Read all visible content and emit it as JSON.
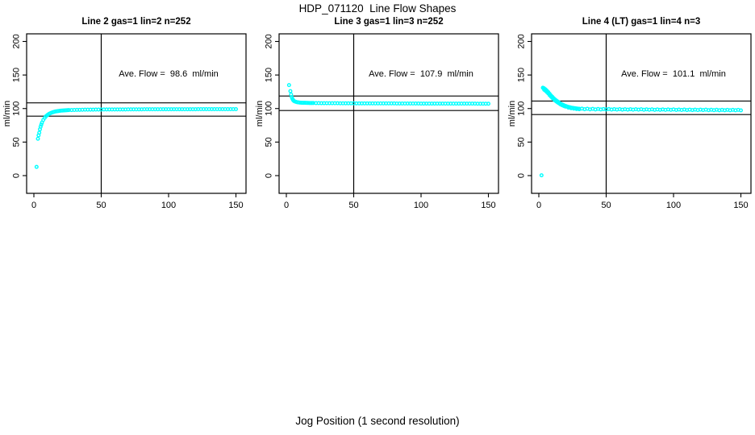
{
  "page": {
    "title": "HDP_071120  Line Flow Shapes",
    "xlabel": "Jog Position (1 second resolution)"
  },
  "colors": {
    "points": "#00FFFF",
    "axis": "#000000",
    "background": "#FFFFFF"
  },
  "chart_data": [
    {
      "type": "scatter",
      "title": "Line 2 gas=1 lin=2 n=252",
      "annotation": "Ave. Flow =  98.6  ml/min",
      "ave_flow_ml_min": 98.6,
      "ylabel": "ml/min",
      "x_ticks": [
        0,
        50,
        100,
        150
      ],
      "y_ticks": [
        0,
        50,
        100,
        150,
        200
      ],
      "xlim": [
        0,
        150
      ],
      "ylim": [
        0,
        200
      ],
      "vline_x": 50,
      "hlines": [
        108.5,
        88.7
      ],
      "points": [
        [
          2,
          13
        ],
        [
          3,
          55
        ],
        [
          3.5,
          60
        ],
        [
          4,
          64
        ],
        [
          4.5,
          69
        ],
        [
          5,
          73
        ],
        [
          5.5,
          76
        ],
        [
          6,
          79
        ],
        [
          7,
          83
        ],
        [
          8,
          86
        ],
        [
          9,
          88.5
        ],
        [
          10,
          90.3
        ],
        [
          11,
          91.7
        ],
        [
          12,
          92.8
        ],
        [
          13,
          93.7
        ],
        [
          14,
          94.5
        ],
        [
          15,
          95.1
        ],
        [
          16,
          95.6
        ],
        [
          17,
          96
        ],
        [
          18,
          96.3
        ],
        [
          19,
          96.6
        ],
        [
          20,
          96.8
        ],
        [
          21,
          97
        ],
        [
          22,
          97.2
        ],
        [
          23,
          97.3
        ],
        [
          24,
          97.5
        ],
        [
          25,
          97.6
        ],
        [
          26,
          97.7
        ],
        [
          28,
          97.8
        ],
        [
          30,
          97.9
        ],
        [
          32,
          98
        ],
        [
          34,
          98.1
        ],
        [
          36,
          98.2
        ],
        [
          38,
          98.3
        ],
        [
          40,
          98.3
        ],
        [
          42,
          98.4
        ],
        [
          44,
          98.4
        ],
        [
          46,
          98.5
        ],
        [
          48,
          98.5
        ],
        [
          50,
          98.5
        ],
        [
          52,
          98.6
        ],
        [
          54,
          98.6
        ],
        [
          56,
          98.6
        ],
        [
          58,
          98.6
        ],
        [
          60,
          98.7
        ],
        [
          62,
          98.7
        ],
        [
          64,
          98.7
        ],
        [
          66,
          98.7
        ],
        [
          68,
          98.7
        ],
        [
          70,
          98.8
        ],
        [
          72,
          98.8
        ],
        [
          74,
          98.8
        ],
        [
          76,
          98.8
        ],
        [
          78,
          98.8
        ],
        [
          80,
          98.8
        ],
        [
          82,
          98.9
        ],
        [
          84,
          98.9
        ],
        [
          86,
          98.9
        ],
        [
          88,
          98.9
        ],
        [
          90,
          98.9
        ],
        [
          92,
          98.9
        ],
        [
          94,
          98.9
        ],
        [
          96,
          99
        ],
        [
          98,
          99
        ],
        [
          100,
          99
        ],
        [
          102,
          99
        ],
        [
          104,
          99
        ],
        [
          106,
          99
        ],
        [
          108,
          99
        ],
        [
          110,
          99
        ],
        [
          112,
          99
        ],
        [
          114,
          99
        ],
        [
          116,
          99
        ],
        [
          118,
          99
        ],
        [
          120,
          99
        ],
        [
          122,
          99.1
        ],
        [
          124,
          99.1
        ],
        [
          126,
          99.1
        ],
        [
          128,
          99.1
        ],
        [
          130,
          99.1
        ],
        [
          132,
          99.1
        ],
        [
          134,
          99.1
        ],
        [
          136,
          99.1
        ],
        [
          138,
          99.1
        ],
        [
          140,
          99.1
        ],
        [
          142,
          99.1
        ],
        [
          144,
          99.1
        ],
        [
          146,
          99.1
        ],
        [
          148,
          99.1
        ],
        [
          150,
          99.1
        ]
      ]
    },
    {
      "type": "scatter",
      "title": "Line 3 gas=1 lin=3 n=252",
      "annotation": "Ave. Flow =  107.9  ml/min",
      "ave_flow_ml_min": 107.9,
      "ylabel": "ml/min",
      "x_ticks": [
        0,
        50,
        100,
        150
      ],
      "y_ticks": [
        0,
        50,
        100,
        150,
        200
      ],
      "xlim": [
        0,
        150
      ],
      "ylim": [
        0,
        200
      ],
      "vline_x": 50,
      "hlines": [
        118.7,
        97.1
      ],
      "points": [
        [
          2,
          135
        ],
        [
          3,
          126
        ],
        [
          3.5,
          121
        ],
        [
          4,
          117
        ],
        [
          4.5,
          114.5
        ],
        [
          5,
          112.8
        ],
        [
          5.5,
          111.6
        ],
        [
          6,
          110.8
        ],
        [
          7,
          110
        ],
        [
          8,
          109.5
        ],
        [
          9,
          109.1
        ],
        [
          10,
          108.9
        ],
        [
          11,
          108.7
        ],
        [
          12,
          108.6
        ],
        [
          13,
          108.5
        ],
        [
          14,
          108.5
        ],
        [
          15,
          108.4
        ],
        [
          16,
          108.4
        ],
        [
          17,
          108.3
        ],
        [
          18,
          108.3
        ],
        [
          19,
          108.2
        ],
        [
          20,
          108.2
        ],
        [
          22,
          108.1
        ],
        [
          24,
          108.1
        ],
        [
          26,
          108
        ],
        [
          28,
          108
        ],
        [
          30,
          108
        ],
        [
          32,
          107.9
        ],
        [
          34,
          107.9
        ],
        [
          36,
          107.9
        ],
        [
          38,
          107.9
        ],
        [
          40,
          107.8
        ],
        [
          42,
          107.8
        ],
        [
          44,
          107.8
        ],
        [
          46,
          107.8
        ],
        [
          48,
          107.8
        ],
        [
          50,
          107.8
        ],
        [
          52,
          107.7
        ],
        [
          54,
          107.7
        ],
        [
          56,
          107.7
        ],
        [
          58,
          107.7
        ],
        [
          60,
          107.7
        ],
        [
          62,
          107.7
        ],
        [
          64,
          107.7
        ],
        [
          66,
          107.6
        ],
        [
          68,
          107.6
        ],
        [
          70,
          107.6
        ],
        [
          72,
          107.6
        ],
        [
          74,
          107.6
        ],
        [
          76,
          107.6
        ],
        [
          78,
          107.6
        ],
        [
          80,
          107.6
        ],
        [
          82,
          107.5
        ],
        [
          84,
          107.5
        ],
        [
          86,
          107.5
        ],
        [
          88,
          107.5
        ],
        [
          90,
          107.5
        ],
        [
          92,
          107.5
        ],
        [
          94,
          107.5
        ],
        [
          96,
          107.5
        ],
        [
          98,
          107.5
        ],
        [
          100,
          107.4
        ],
        [
          102,
          107.4
        ],
        [
          104,
          107.4
        ],
        [
          106,
          107.4
        ],
        [
          108,
          107.4
        ],
        [
          110,
          107.4
        ],
        [
          112,
          107.4
        ],
        [
          114,
          107.4
        ],
        [
          116,
          107.4
        ],
        [
          118,
          107.4
        ],
        [
          120,
          107.3
        ],
        [
          122,
          107.3
        ],
        [
          124,
          107.3
        ],
        [
          126,
          107.3
        ],
        [
          128,
          107.3
        ],
        [
          130,
          107.3
        ],
        [
          132,
          107.3
        ],
        [
          134,
          107.3
        ],
        [
          136,
          107.3
        ],
        [
          138,
          107.3
        ],
        [
          140,
          107.3
        ],
        [
          142,
          107.2
        ],
        [
          144,
          107.2
        ],
        [
          146,
          107.2
        ],
        [
          148,
          107.2
        ],
        [
          150,
          107.2
        ]
      ]
    },
    {
      "type": "scatter",
      "title": "Line 4 (LT) gas=1 lin=4 n=3",
      "annotation": "Ave. Flow =  101.1  ml/min",
      "ave_flow_ml_min": 101.1,
      "ylabel": "ml/min",
      "x_ticks": [
        0,
        50,
        100,
        150
      ],
      "y_ticks": [
        0,
        50,
        100,
        150,
        200
      ],
      "xlim": [
        0,
        150
      ],
      "ylim": [
        0,
        200
      ],
      "vline_x": 50,
      "hlines": [
        111.2,
        91.0
      ],
      "points": [
        [
          2,
          0.5
        ],
        [
          3,
          131
        ],
        [
          3.5,
          130.5
        ],
        [
          4,
          130
        ],
        [
          4,
          128
        ],
        [
          5,
          128.5
        ],
        [
          5,
          126.5
        ],
        [
          6,
          126.5
        ],
        [
          6,
          124.5
        ],
        [
          7,
          124.5
        ],
        [
          7,
          122.5
        ],
        [
          8,
          122
        ],
        [
          8,
          120
        ],
        [
          9,
          119.5
        ],
        [
          9,
          117.8
        ],
        [
          10,
          117.5
        ],
        [
          10,
          115.8
        ],
        [
          11,
          115.5
        ],
        [
          11,
          114
        ],
        [
          12,
          113.5
        ],
        [
          12,
          112
        ],
        [
          13,
          112
        ],
        [
          13,
          110.5
        ],
        [
          14,
          110.5
        ],
        [
          14,
          109
        ],
        [
          15,
          109
        ],
        [
          15,
          107.8
        ],
        [
          16,
          107.5
        ],
        [
          16,
          106.3
        ],
        [
          17,
          106.5
        ],
        [
          17,
          105.3
        ],
        [
          18,
          105.5
        ],
        [
          18,
          104.3
        ],
        [
          19,
          104.5
        ],
        [
          19,
          103.5
        ],
        [
          20,
          103.8
        ],
        [
          20,
          102.8
        ],
        [
          21,
          103
        ],
        [
          22,
          102.4
        ],
        [
          22,
          101.4
        ],
        [
          23,
          101.9
        ],
        [
          24,
          101.4
        ],
        [
          24,
          100.5
        ],
        [
          25,
          101
        ],
        [
          26,
          100.7
        ],
        [
          26,
          99.8
        ],
        [
          27,
          100.4
        ],
        [
          28,
          100.1
        ],
        [
          28,
          99.3
        ],
        [
          29,
          99.9
        ],
        [
          30,
          99.7
        ],
        [
          30,
          99
        ],
        [
          32,
          99.9
        ],
        [
          34,
          99
        ],
        [
          36,
          99.7
        ],
        [
          38,
          98.8
        ],
        [
          40,
          99.5
        ],
        [
          42,
          98.7
        ],
        [
          44,
          99.4
        ],
        [
          46,
          98.6
        ],
        [
          48,
          99.3
        ],
        [
          50,
          98.6
        ],
        [
          52,
          99.2
        ],
        [
          54,
          98.5
        ],
        [
          56,
          99.1
        ],
        [
          58,
          98.5
        ],
        [
          60,
          99.1
        ],
        [
          62,
          98.4
        ],
        [
          64,
          99
        ],
        [
          66,
          98.4
        ],
        [
          68,
          99
        ],
        [
          70,
          98.3
        ],
        [
          72,
          98.9
        ],
        [
          74,
          98.3
        ],
        [
          76,
          98.9
        ],
        [
          78,
          98.2
        ],
        [
          80,
          98.8
        ],
        [
          82,
          98.2
        ],
        [
          84,
          98.8
        ],
        [
          86,
          98.1
        ],
        [
          88,
          98.7
        ],
        [
          90,
          98.1
        ],
        [
          92,
          98.7
        ],
        [
          94,
          98
        ],
        [
          96,
          98.6
        ],
        [
          98,
          98
        ],
        [
          100,
          98.6
        ],
        [
          102,
          97.9
        ],
        [
          104,
          98.5
        ],
        [
          106,
          97.9
        ],
        [
          108,
          98.5
        ],
        [
          110,
          97.8
        ],
        [
          112,
          98.4
        ],
        [
          114,
          97.8
        ],
        [
          116,
          98.4
        ],
        [
          118,
          97.7
        ],
        [
          120,
          98.3
        ],
        [
          122,
          97.7
        ],
        [
          124,
          98.3
        ],
        [
          126,
          97.6
        ],
        [
          128,
          98.2
        ],
        [
          130,
          97.6
        ],
        [
          132,
          98.2
        ],
        [
          134,
          97.5
        ],
        [
          136,
          98.1
        ],
        [
          138,
          97.5
        ],
        [
          140,
          98.1
        ],
        [
          142,
          97.4
        ],
        [
          144,
          98
        ],
        [
          146,
          97.4
        ],
        [
          148,
          98
        ],
        [
          150,
          97.3
        ]
      ]
    }
  ]
}
